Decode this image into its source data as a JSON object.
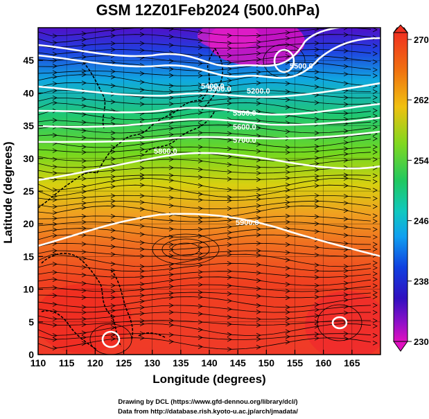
{
  "title": "GSM 12Z01Feb2024 (500.0hPa)",
  "map": {
    "level_hpa": 500.0,
    "x_axis": {
      "label": "Longitude (degrees)",
      "min": 110,
      "max": 170,
      "ticks": [
        110,
        115,
        120,
        125,
        130,
        135,
        140,
        145,
        150,
        155,
        160,
        165
      ]
    },
    "y_axis": {
      "label": "Latitude  (degrees)",
      "min": 0,
      "max": 50,
      "ticks": [
        0,
        5,
        10,
        15,
        20,
        25,
        30,
        35,
        40,
        45
      ]
    },
    "colorbar": {
      "ticks": [
        230,
        238,
        246,
        254,
        262,
        270
      ],
      "min": 230,
      "max": 270,
      "colors": [
        "#e010c0",
        "#5a10c8",
        "#1030e0",
        "#10a0e8",
        "#10d8a0",
        "#40d020",
        "#c0e010",
        "#f0a010",
        "#f06010",
        "#e82020"
      ]
    },
    "contour_labels": [
      "5200.0",
      "5300.0",
      "5500.0",
      "5600.0",
      "5700.0",
      "5800.0",
      "5900.0",
      "5500.0",
      "5400.0"
    ],
    "contour_lines_height_m": [
      5200,
      5300,
      5400,
      5500,
      5600,
      5700,
      5800,
      5900
    ]
  },
  "credits": {
    "line1": "Drawing by DCL (https://www.gfd-dennou.org/library/dcl/)",
    "line2": "Data from http://database.rish.kyoto-u.ac.jp/arch/jmadata/"
  }
}
